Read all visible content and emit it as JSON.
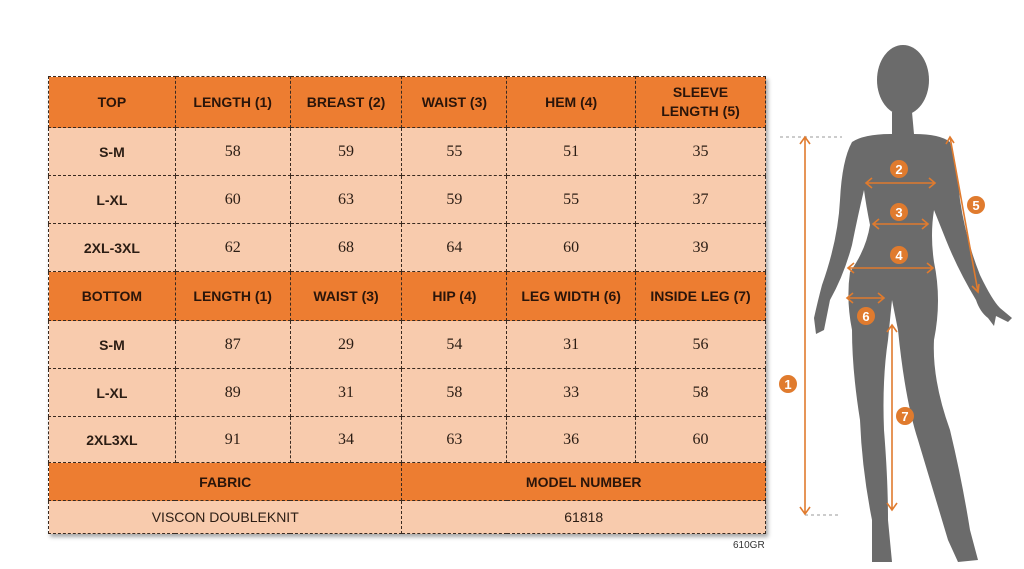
{
  "colors": {
    "header": "#ED7D31",
    "cell": "#F8CBAD",
    "silhouette": "#6b6b6b",
    "marker": "#E07B2E"
  },
  "top": {
    "headers": [
      "TOP",
      "LENGTH (1)",
      "BREAST (2)",
      "WAIST (3)",
      "HEM (4)",
      "SLEEVE LENGTH (5)"
    ],
    "rows": [
      [
        "S-M",
        "58",
        "59",
        "55",
        "51",
        "35"
      ],
      [
        "L-XL",
        "60",
        "63",
        "59",
        "55",
        "37"
      ],
      [
        "2XL-3XL",
        "62",
        "68",
        "64",
        "60",
        "39"
      ]
    ]
  },
  "bottom": {
    "headers": [
      "BOTTOM",
      "LENGTH (1)",
      "WAIST (3)",
      "HIP (4)",
      "LEG WIDTH (6)",
      "INSIDE LEG (7)"
    ],
    "rows": [
      [
        "S-M",
        "87",
        "29",
        "54",
        "31",
        "56"
      ],
      [
        "L-XL",
        "89",
        "31",
        "58",
        "33",
        "58"
      ],
      [
        "2XL3XL",
        "91",
        "34",
        "63",
        "36",
        "60"
      ]
    ]
  },
  "footer": {
    "fabric_label": "FABRIC",
    "model_label": "MODEL NUMBER",
    "fabric_value": "VISCON DOUBLEKNIT",
    "model_value": "61818"
  },
  "code": "610GR",
  "figure": {
    "markers": [
      "1",
      "2",
      "3",
      "4",
      "5",
      "6",
      "7"
    ]
  }
}
